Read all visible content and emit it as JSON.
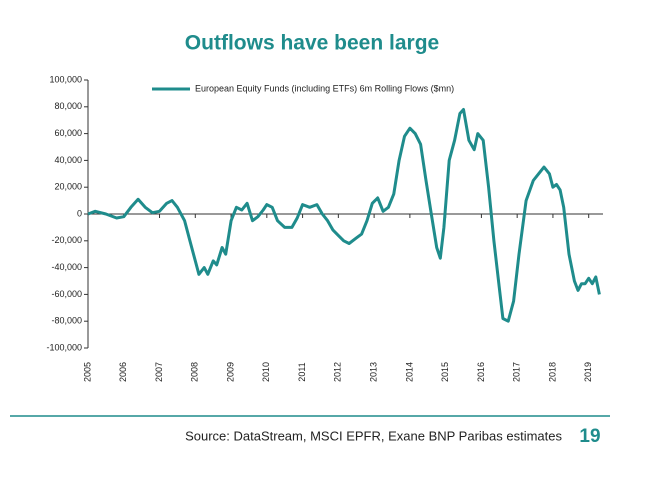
{
  "chart_data": {
    "type": "line",
    "title": "Outflows have been large",
    "x": [
      2005.0,
      2005.2,
      2005.5,
      2005.8,
      2006.0,
      2006.2,
      2006.4,
      2006.6,
      2006.8,
      2007.0,
      2007.2,
      2007.35,
      2007.5,
      2007.7,
      2007.85,
      2008.0,
      2008.1,
      2008.25,
      2008.35,
      2008.5,
      2008.6,
      2008.75,
      2008.85,
      2009.0,
      2009.15,
      2009.3,
      2009.45,
      2009.6,
      2009.75,
      2009.9,
      2010.0,
      2010.15,
      2010.3,
      2010.5,
      2010.7,
      2010.85,
      2011.0,
      2011.2,
      2011.4,
      2011.55,
      2011.7,
      2011.85,
      2012.0,
      2012.15,
      2012.3,
      2012.5,
      2012.65,
      2012.8,
      2012.95,
      2013.1,
      2013.25,
      2013.4,
      2013.55,
      2013.7,
      2013.85,
      2014.0,
      2014.15,
      2014.3,
      2014.45,
      2014.6,
      2014.75,
      2014.85,
      2014.95,
      2015.1,
      2015.25,
      2015.4,
      2015.5,
      2015.65,
      2015.8,
      2015.9,
      2016.05,
      2016.2,
      2016.35,
      2016.5,
      2016.6,
      2016.75,
      2016.9,
      2017.05,
      2017.25,
      2017.45,
      2017.6,
      2017.75,
      2017.9,
      2018.0,
      2018.1,
      2018.2,
      2018.3,
      2018.45,
      2018.6,
      2018.7,
      2018.8,
      2018.9,
      2019.0,
      2019.1,
      2019.2,
      2019.3
    ],
    "series": [
      {
        "name": "European Equity Funds (including ETFs) 6m Rolling Flows ($mn)",
        "color": "#1f8c8c",
        "values": [
          0,
          2000,
          0,
          -3000,
          -2000,
          5000,
          11000,
          5000,
          1000,
          2000,
          8000,
          10000,
          5000,
          -5000,
          -20000,
          -35000,
          -45000,
          -40000,
          -45000,
          -35000,
          -38000,
          -25000,
          -30000,
          -5000,
          5000,
          3000,
          8000,
          -5000,
          -2000,
          3000,
          7000,
          5000,
          -5000,
          -10000,
          -10000,
          -3000,
          7000,
          5000,
          7000,
          0,
          -5000,
          -12000,
          -16000,
          -20000,
          -22000,
          -18000,
          -15000,
          -5000,
          8000,
          12000,
          2000,
          5000,
          15000,
          40000,
          58000,
          64000,
          60000,
          52000,
          25000,
          0,
          -25000,
          -33000,
          -10000,
          40000,
          55000,
          75000,
          78000,
          55000,
          48000,
          60000,
          55000,
          20000,
          -20000,
          -55000,
          -78000,
          -80000,
          -65000,
          -30000,
          10000,
          25000,
          30000,
          35000,
          30000,
          20000,
          22000,
          18000,
          5000,
          -30000,
          -50000,
          -57000,
          -52000,
          -52000,
          -48000,
          -52000,
          -47000,
          -60000
        ]
      }
    ],
    "xlim": [
      2005,
      2019.4
    ],
    "xticks": [
      2005,
      2006,
      2007,
      2008,
      2009,
      2010,
      2011,
      2012,
      2013,
      2014,
      2015,
      2016,
      2017,
      2018,
      2019
    ],
    "ylim": [
      -100000,
      100000
    ],
    "yticks": [
      {
        "value": -100000,
        "label": "-100,000"
      },
      {
        "value": -80000,
        "label": "-80,000"
      },
      {
        "value": -60000,
        "label": "-60,000"
      },
      {
        "value": -40000,
        "label": "-40,000"
      },
      {
        "value": -20000,
        "label": "-20,000"
      },
      0,
      {
        "value": 20000,
        "label": "20,000"
      },
      {
        "value": 40000,
        "label": "40,000"
      },
      {
        "value": 60000,
        "label": "60,000"
      },
      {
        "value": 80000,
        "label": "80,000"
      },
      {
        "value": 100000,
        "label": "100,000"
      }
    ],
    "grid": false
  },
  "footer": {
    "source": "Source: DataStream, MSCI EPFR, Exane BNP Paribas estimates",
    "page": "19"
  }
}
